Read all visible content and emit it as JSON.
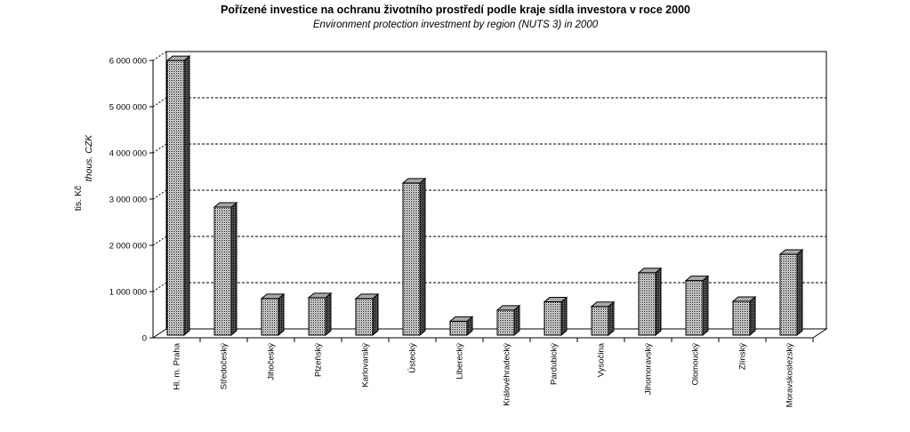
{
  "chart_data": {
    "type": "bar",
    "title": "Pořízené investice na ochranu životního prostředí podle kraje sídla investora v roce 2000",
    "subtitle": "Environment protection investment by region (NUTS 3) in 2000",
    "ylabel": "tis. Kč",
    "ylabel_en": "thous. CZK",
    "xlabel": "",
    "ylim": [
      0,
      6000000
    ],
    "yticks": [
      0,
      1000000,
      2000000,
      3000000,
      4000000,
      5000000,
      6000000
    ],
    "ytick_labels": [
      "0",
      "1 000 000",
      "2 000 000",
      "3 000 000",
      "4 000 000",
      "5 000 000",
      "6 000 000"
    ],
    "grid": true,
    "categories": [
      "Hl. m. Praha",
      "Středočeský",
      "Jihočeský",
      "Plzeňský",
      "Karlovarský",
      "Ústecký",
      "Liberecký",
      "Královéhradecký",
      "Pardubický",
      "Vysočina",
      "Jihomoravský",
      "Olomoucký",
      "Zlínský",
      "Moravskoslezský"
    ],
    "values": [
      5940000,
      2770000,
      790000,
      810000,
      790000,
      3290000,
      300000,
      540000,
      720000,
      620000,
      1350000,
      1180000,
      730000,
      1750000
    ],
    "colors": {
      "bar_face": "#d8d8d8",
      "bar_side": "#808080",
      "bar_top": "#a8a8a8",
      "outline": "#000000"
    }
  }
}
